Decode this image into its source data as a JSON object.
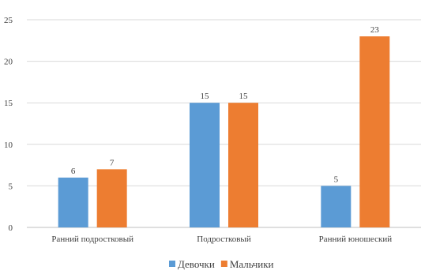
{
  "chart_data": {
    "type": "bar",
    "title": "",
    "xlabel": "",
    "ylabel": "",
    "ylim": [
      0,
      25
    ],
    "yticks": [
      0,
      5,
      10,
      15,
      20,
      25
    ],
    "grid": true,
    "legend_position": "bottom",
    "categories": [
      "Ранний подростковый",
      "Подростковый",
      "Ранний юношеский"
    ],
    "series": [
      {
        "name": "Девочки",
        "color": "#5b9bd5",
        "values": [
          6,
          15,
          5
        ]
      },
      {
        "name": "Мальчики",
        "color": "#ed7d31",
        "values": [
          7,
          15,
          23
        ]
      }
    ],
    "data_labels": true
  }
}
